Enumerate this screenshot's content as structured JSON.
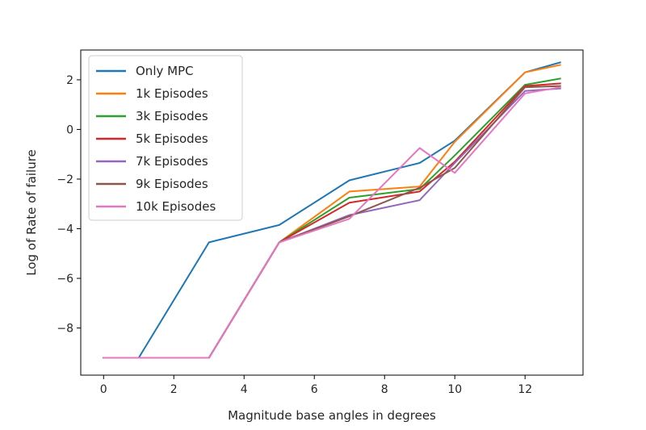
{
  "chart_data": {
    "type": "line",
    "title": "",
    "xlabel": "Magnitude base angles in degrees",
    "ylabel": "Log of Rate of failure",
    "xlim": [
      -0.65,
      13.65
    ],
    "ylim": [
      -9.9,
      3.2
    ],
    "xticks": [
      0,
      2,
      4,
      6,
      8,
      10,
      12
    ],
    "yticks": [
      -8,
      -6,
      -4,
      -2,
      0,
      2
    ],
    "x": [
      0,
      1,
      3,
      5,
      7,
      9,
      10,
      12,
      13
    ],
    "grid": false,
    "legend_position": "upper-left",
    "series": [
      {
        "name": "Only MPC",
        "color": "#1f77b4",
        "values": [
          -9.2,
          -9.2,
          -4.55,
          -3.85,
          -2.05,
          -1.35,
          -0.45,
          2.3,
          2.7
        ]
      },
      {
        "name": "1k Episodes",
        "color": "#ff7f0e",
        "values": [
          -9.2,
          -9.2,
          -9.2,
          -4.55,
          -2.5,
          -2.3,
          -0.5,
          2.3,
          2.6
        ]
      },
      {
        "name": "3k Episodes",
        "color": "#2ca02c",
        "values": [
          -9.2,
          -9.2,
          -9.2,
          -4.55,
          -2.75,
          -2.4,
          -1.05,
          1.8,
          2.05
        ]
      },
      {
        "name": "5k Episodes",
        "color": "#d62728",
        "values": [
          -9.2,
          -9.2,
          -9.2,
          -4.55,
          -2.95,
          -2.5,
          -1.3,
          1.75,
          1.85
        ]
      },
      {
        "name": "7k Episodes",
        "color": "#9467bd",
        "values": [
          -9.2,
          -9.2,
          -9.2,
          -4.55,
          -3.45,
          -2.85,
          -1.35,
          1.55,
          1.65
        ]
      },
      {
        "name": "9k Episodes",
        "color": "#8c564b",
        "values": [
          -9.2,
          -9.2,
          -9.2,
          -4.55,
          -3.5,
          -2.35,
          -1.55,
          1.7,
          1.75
        ]
      },
      {
        "name": "10k Episodes",
        "color": "#e377c2",
        "values": [
          -9.2,
          -9.2,
          -9.2,
          -4.55,
          -3.6,
          -0.75,
          -1.75,
          1.45,
          1.7
        ]
      }
    ]
  }
}
